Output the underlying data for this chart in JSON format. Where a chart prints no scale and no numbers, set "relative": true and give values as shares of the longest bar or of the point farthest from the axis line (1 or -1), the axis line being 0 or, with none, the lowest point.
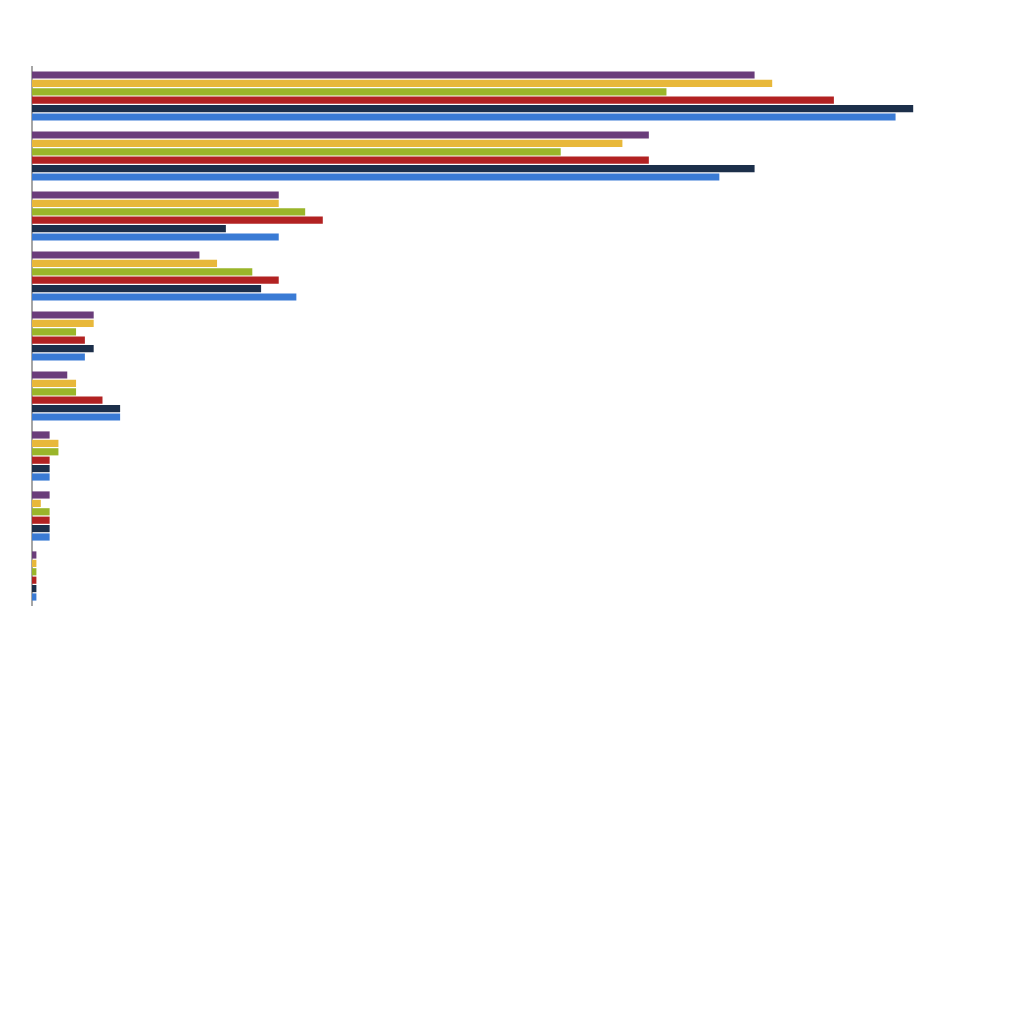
{
  "chart_data": {
    "type": "bar",
    "orientation": "horizontal",
    "relative": true,
    "categories": [
      null,
      null,
      null,
      null,
      null,
      null,
      null,
      null,
      null
    ],
    "series": [
      {
        "color": "#6a3d7a",
        "values": [
          0.82,
          0.7,
          0.28,
          0.19,
          0.07,
          0.04,
          0.02,
          0.02,
          0.005
        ]
      },
      {
        "color": "#e8b83a",
        "values": [
          0.84,
          0.67,
          0.28,
          0.21,
          0.07,
          0.05,
          0.03,
          0.01,
          0.005
        ]
      },
      {
        "color": "#9ab52a",
        "values": [
          0.72,
          0.6,
          0.31,
          0.25,
          0.05,
          0.05,
          0.03,
          0.02,
          0.005
        ]
      },
      {
        "color": "#b22222",
        "values": [
          0.91,
          0.7,
          0.33,
          0.28,
          0.06,
          0.08,
          0.02,
          0.02,
          0.005
        ]
      },
      {
        "color": "#1c2f4a",
        "values": [
          1,
          0.82,
          0.22,
          0.26,
          0.07,
          0.1,
          0.02,
          0.02,
          0.005
        ]
      },
      {
        "color": "#3a7bd5",
        "values": [
          0.98,
          0.78,
          0.28,
          0.3,
          0.06,
          0.1,
          0.02,
          0.02,
          0.005
        ]
      }
    ]
  }
}
